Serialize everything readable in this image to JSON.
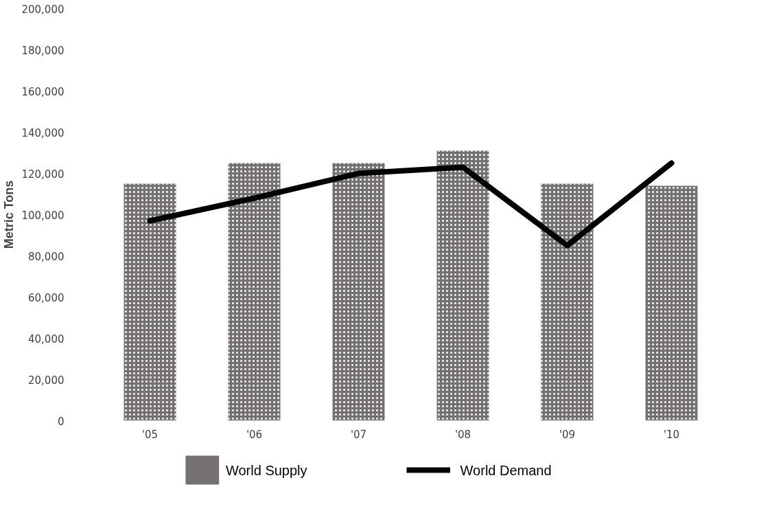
{
  "chart_data": {
    "type": "bar",
    "ylabel": "Metric Tons",
    "categories": [
      "'05",
      "'06",
      "'07",
      "'08",
      "'09",
      "'10"
    ],
    "series": [
      {
        "name": "World Supply",
        "color": "#767171",
        "values": [
          115000,
          125000,
          125000,
          131000,
          115000,
          114000
        ]
      },
      {
        "name": "World Demand",
        "type": "line",
        "color": "#000000",
        "values": [
          97000,
          108000,
          120000,
          123000,
          85000,
          125000
        ]
      }
    ],
    "ylim": [
      0,
      200000
    ],
    "yticks": [
      {
        "value": 0,
        "label": "0"
      },
      {
        "value": 20000,
        "label": "20,000"
      },
      {
        "value": 40000,
        "label": "40,000"
      },
      {
        "value": 60000,
        "label": "60,000"
      },
      {
        "value": 80000,
        "label": "80,000"
      },
      {
        "value": 100000,
        "label": "100,000"
      },
      {
        "value": 120000,
        "label": "120,000"
      },
      {
        "value": 140000,
        "label": "140,000"
      },
      {
        "value": 160000,
        "label": "160,000"
      },
      {
        "value": 180000,
        "label": "180,000"
      },
      {
        "value": 200000,
        "label": "200,000"
      }
    ],
    "grid": false,
    "legend": "bottom",
    "line_style": "solid",
    "marker": "none"
  }
}
